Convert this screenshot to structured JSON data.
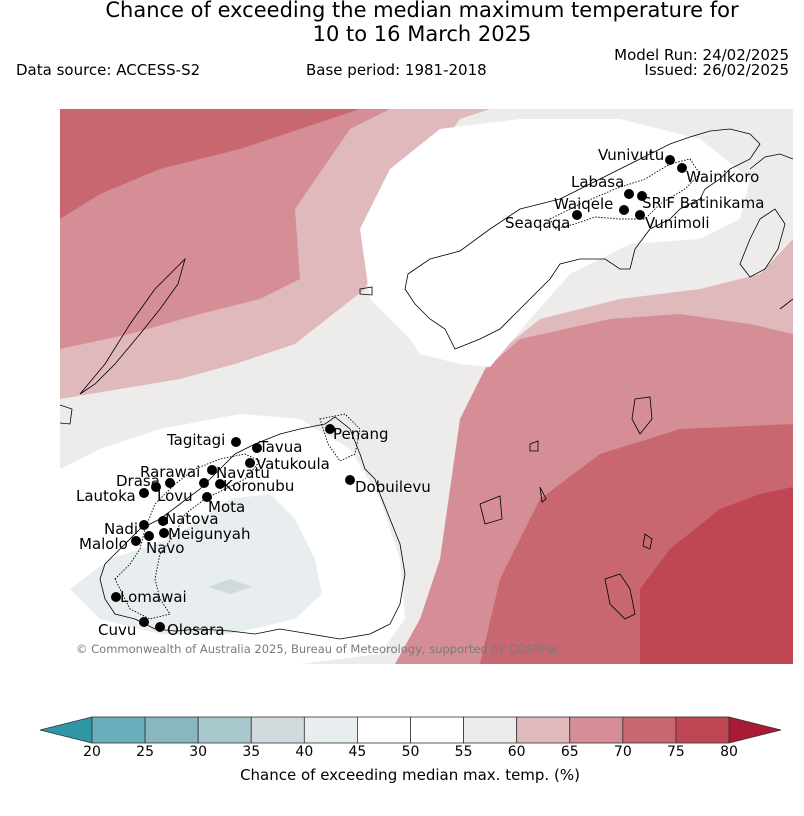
{
  "title": {
    "line1": "Chance of exceeding the median maximum temperature for",
    "line2": "10 to 16 March 2025"
  },
  "header": {
    "data_source": "Data source: ACCESS-S2",
    "base_period": "Base period: 1981-2018",
    "model_run": "Model Run: 24/02/2025",
    "issued": "Issued: 26/02/2025"
  },
  "copyright": "© Commonwealth of Australia 2025, Bureau of Meteorology, supported by COSPPac",
  "locations": [
    "Vunivutu",
    "Wainikoro",
    "Labasa",
    "SRIF Batinikama",
    "Waiqele",
    "Vunimoli",
    "Seaqaqa",
    "Penang",
    "Tagitagi",
    "Tavua",
    "Vatukoula",
    "Dobuilevu",
    "Rarawai",
    "Navatu",
    "Koronubu",
    "Drasa",
    "Lovu",
    "Lautoka",
    "Mota",
    "Natova",
    "Nadi",
    "Meigunyah",
    "Malolo",
    "Navo",
    "Lomawai",
    "Cuvu",
    "Olosara"
  ],
  "colorbar": {
    "title": "Chance of exceeding median max. temp. (%)",
    "ticks": [
      "20",
      "25",
      "30",
      "35",
      "40",
      "45",
      "50",
      "55",
      "60",
      "65",
      "70",
      "75",
      "80"
    ],
    "colors": [
      "#6aaebb",
      "#89b7c1",
      "#a9c8cd",
      "#d0d9dc",
      "#e8eef0",
      "#ffffff",
      "#ffffff",
      "#eeeceb",
      "#e0b9bd",
      "#d58e95",
      "#c96770",
      "#bf4653"
    ],
    "under_color": "#2f97a6",
    "over_color": "#a81a36"
  }
}
